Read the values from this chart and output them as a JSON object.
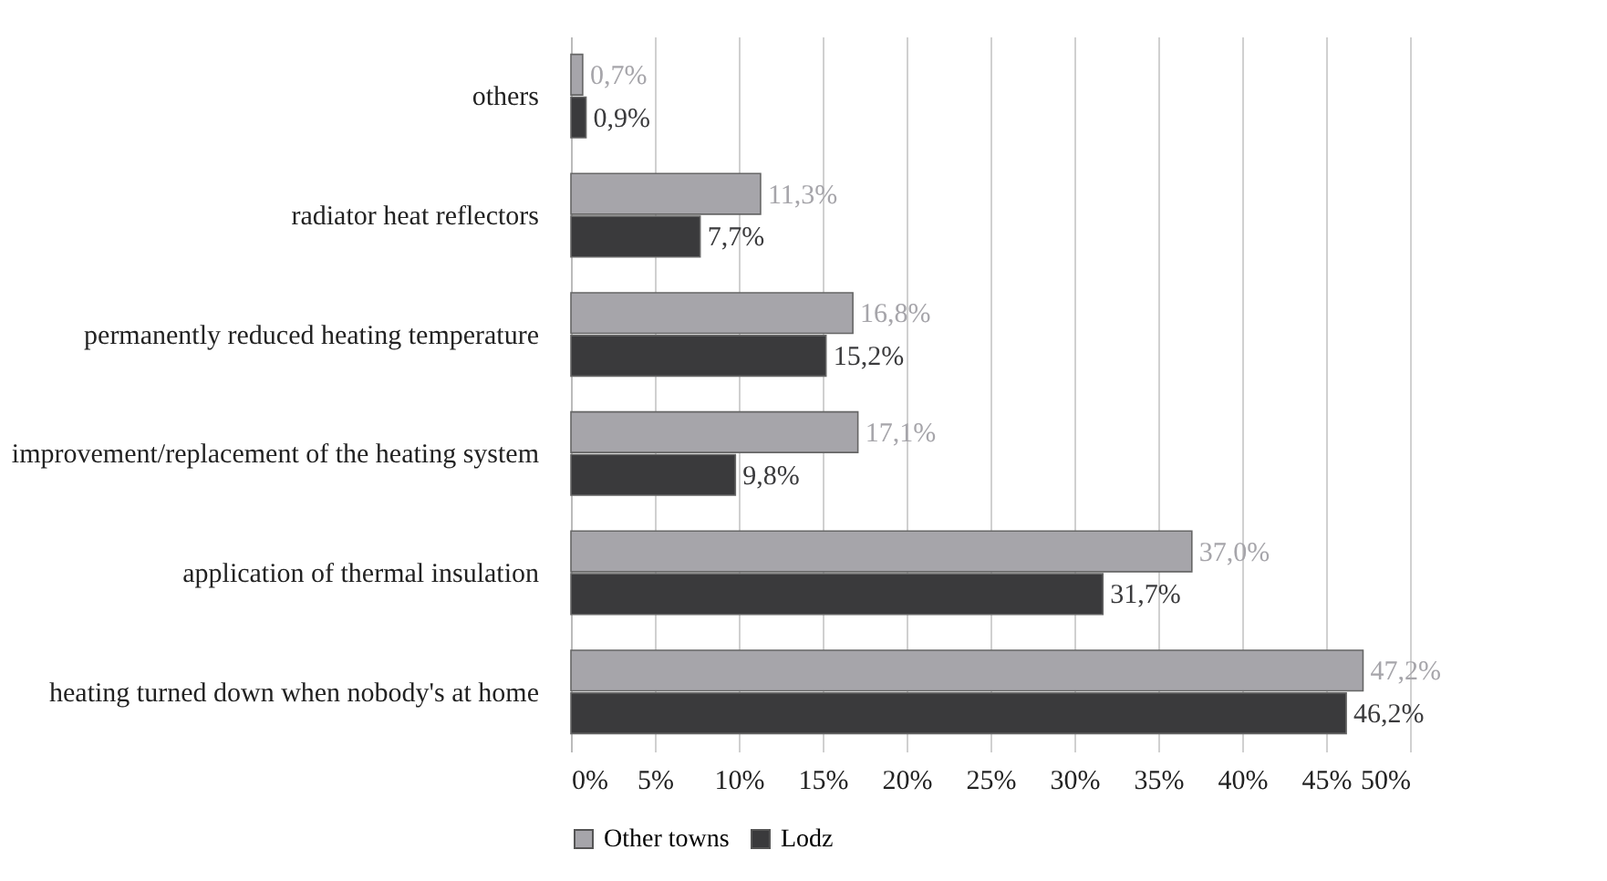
{
  "chart_data": {
    "type": "bar",
    "orientation": "horizontal",
    "categories": [
      "others",
      "radiator heat reflectors",
      "permanently reduced heating temperature",
      "improvement/replacement of the heating system",
      "application of thermal insulation",
      "heating turned down when nobody's at home"
    ],
    "series": [
      {
        "name": "Other towns",
        "color": "#a6a5aa",
        "values": [
          0.7,
          11.3,
          16.8,
          17.1,
          37.0,
          47.2
        ],
        "value_labels": [
          "0,7%",
          "11,3%",
          "16,8%",
          "17,1%",
          "37,0%",
          "47,2%"
        ]
      },
      {
        "name": "Lodz",
        "color": "#3a3a3c",
        "values": [
          0.9,
          7.7,
          15.2,
          9.8,
          31.7,
          46.2
        ],
        "value_labels": [
          "0,9%",
          "7,7%",
          "15,2%",
          "9,8%",
          "31,7%",
          "46,2%"
        ]
      }
    ],
    "xlim": [
      0,
      50
    ],
    "xticks": [
      {
        "value": 0,
        "label": "0%"
      },
      {
        "value": 5,
        "label": "5%"
      },
      {
        "value": 10,
        "label": "10%"
      },
      {
        "value": 15,
        "label": "15%"
      },
      {
        "value": 20,
        "label": "20%"
      },
      {
        "value": 25,
        "label": "25%"
      },
      {
        "value": 30,
        "label": "30%"
      },
      {
        "value": 35,
        "label": "35%"
      },
      {
        "value": 40,
        "label": "40%"
      },
      {
        "value": 45,
        "label": "45%"
      },
      {
        "value": 50,
        "label": "50%"
      }
    ],
    "grid": "x",
    "legend": "bottom"
  }
}
